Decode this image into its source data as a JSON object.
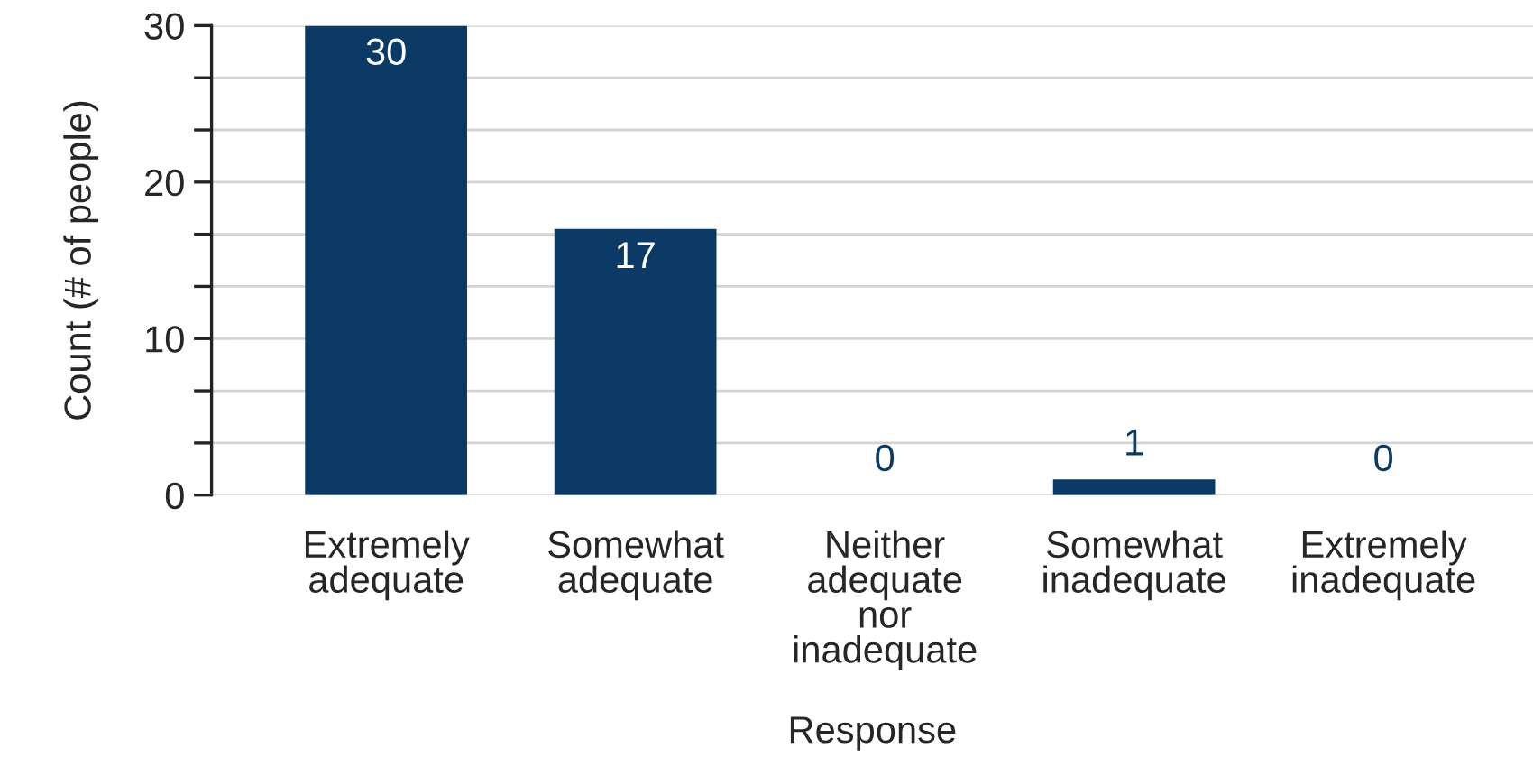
{
  "chart_data": {
    "type": "bar",
    "xlabel": "Response",
    "ylabel": "Count (# of people)",
    "categories": [
      "Extremely\nadequate",
      "Somewhat\nadequate",
      "Neither\nadequate\nnor\ninadequate",
      "Somewhat\ninadequate",
      "Extremely\ninadequate"
    ],
    "values": [
      30,
      17,
      0,
      1,
      0
    ],
    "color": "#0b3a66",
    "ylim": [
      0,
      30
    ],
    "yticks": [
      0,
      {
        "value": 3.333,
        "label": null
      },
      {
        "value": 6.667,
        "label": null
      },
      10,
      {
        "value": 13.333,
        "label": null
      },
      {
        "value": 16.667,
        "label": null
      },
      20,
      {
        "value": 23.333,
        "label": null
      },
      {
        "value": 26.667,
        "label": null
      },
      30
    ],
    "grid": "y",
    "data_labels": true
  }
}
